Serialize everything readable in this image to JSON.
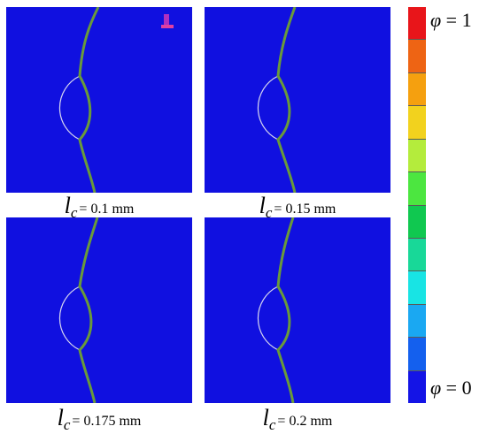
{
  "panels": [
    {
      "symbol": "l",
      "subscript": "c",
      "value": "= 0.1 mm"
    },
    {
      "symbol": "l",
      "subscript": "c",
      "value": "= 0.15 mm"
    },
    {
      "symbol": "l",
      "subscript": "c",
      "value": "= 0.175 mm"
    },
    {
      "symbol": "l",
      "subscript": "c",
      "value": "= 0.2 mm"
    }
  ],
  "colorbar": {
    "top_symbol": "φ",
    "top_value": "= 1",
    "bottom_symbol": "φ",
    "bottom_value": "= 0",
    "colors": [
      "#e8151a",
      "#ee6414",
      "#f5a00f",
      "#f2d21e",
      "#b4ec3c",
      "#4ce640",
      "#10c850",
      "#18d898",
      "#18e4e4",
      "#1aa8f2",
      "#1460ee",
      "#1414e6"
    ]
  },
  "colors": {
    "field": "#1010e0",
    "crack": "#6a9a3a",
    "hole_edge": "#d8d8f0"
  }
}
